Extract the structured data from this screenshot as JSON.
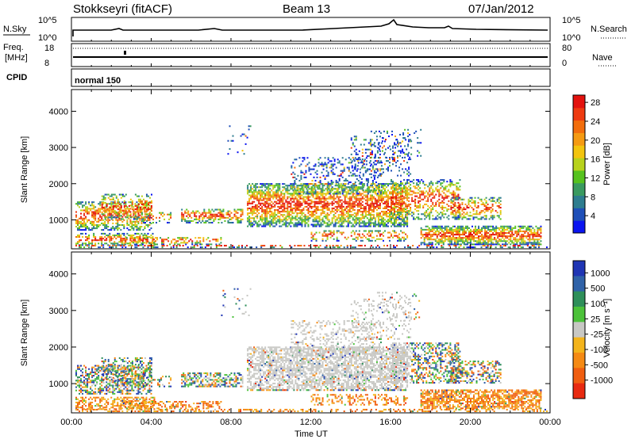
{
  "header": {
    "station": "Stokkseyri (fitACF)",
    "beam": "Beam 13",
    "date": "07/Jan/2012"
  },
  "ts_panel": {
    "left_label": "N.Sky",
    "left_top_tick": "10^5",
    "left_bottom_tick": "10^0",
    "right_label": "N.Search",
    "right_top_tick": "10^5",
    "right_bottom_tick": "10^0"
  },
  "freq_panel": {
    "left_label_1": "Freq.",
    "left_label_2": "[MHz]",
    "left_top_tick": "18",
    "left_bottom_tick": "8",
    "right_label": "Nave",
    "right_top_tick": "80",
    "right_bottom_tick": "0"
  },
  "cpid_panel": {
    "label": "CPID",
    "mode": "normal 150"
  },
  "chart_data": [
    {
      "type": "heatmap",
      "name": "power",
      "ylabel": "Slant Range [km]",
      "xlabel": "Time UT",
      "x_ticks": [
        "00:00",
        "04:00",
        "08:00",
        "12:00",
        "16:00",
        "20:00",
        "00:00"
      ],
      "y_ticks": [
        1000,
        2000,
        3000,
        4000
      ],
      "colorbar": {
        "label": "Power [dB]",
        "ticks": [
          4,
          8,
          12,
          16,
          20,
          24,
          28
        ],
        "colors": [
          "#0a14f0",
          "#1f4fb8",
          "#2e7d8f",
          "#3a9a60",
          "#56c21e",
          "#b8d21c",
          "#f3c40e",
          "#f59a12",
          "#f26d0c",
          "#ee3a10",
          "#e3120e"
        ]
      }
    },
    {
      "type": "heatmap",
      "name": "velocity",
      "ylabel": "Slant Range [km]",
      "xlabel": "Time UT",
      "x_ticks": [
        "00:00",
        "04:00",
        "08:00",
        "12:00",
        "16:00",
        "20:00",
        "00:00"
      ],
      "y_ticks": [
        1000,
        2000,
        3000,
        4000
      ],
      "colorbar": {
        "label": "Velocity [m s^-1]",
        "ticks": [
          "1000",
          "500",
          "100",
          "25",
          "-25",
          "-100",
          "-500",
          "-1000"
        ],
        "colors": [
          "#1f35b4",
          "#2f62a8",
          "#2e8f5a",
          "#4cc23a",
          "#c8c8c4",
          "#f3b41c",
          "#f58a14",
          "#f05e10",
          "#e82a10"
        ]
      }
    }
  ],
  "time_axis": {
    "label": "Time UT",
    "ticks": [
      "00:00",
      "04:00",
      "08:00",
      "12:00",
      "16:00",
      "20:00",
      "00:00"
    ]
  }
}
